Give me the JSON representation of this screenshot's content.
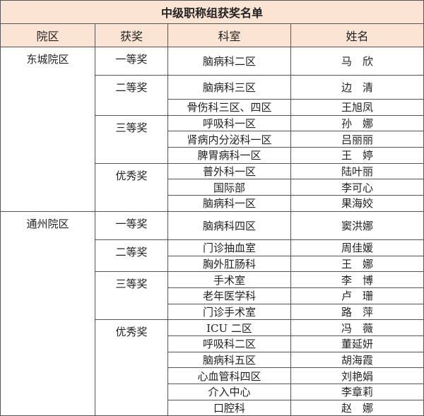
{
  "title": "中级职称组获奖名单",
  "headers": {
    "campus": "院区",
    "award": "获奖",
    "dept": "科室",
    "name": "姓名"
  },
  "header_bg": "#fce4d4",
  "rows": [
    {
      "campus": "东城院区",
      "campus_span": 9,
      "award": "一等奖",
      "award_span": 1,
      "dept": "脑病科二区",
      "name": "马　欣",
      "tall": true
    },
    {
      "award": "二等奖",
      "award_span": 2,
      "dept": "脑病科三区",
      "name": "边　清",
      "tall": true
    },
    {
      "dept": "骨伤科三区、四区",
      "name": "王旭凤"
    },
    {
      "award": "三等奖",
      "award_span": 3,
      "dept": "呼吸科一区",
      "name": "孙　娜"
    },
    {
      "dept": "肾病内分泌科一区",
      "name": "吕丽丽"
    },
    {
      "dept": "脾胃病科一区",
      "name": "王　婷"
    },
    {
      "award": "优秀奖",
      "award_span": 3,
      "dept": "普外科一区",
      "name": "陆叶丽"
    },
    {
      "dept": "国际部",
      "name": "李可心"
    },
    {
      "dept": "脑病科一区",
      "name": "果海姣"
    },
    {
      "campus": "通州院区",
      "campus_span": 12,
      "award": "一等奖",
      "award_span": 1,
      "dept": "脑病科四区",
      "name": "窦洪娜",
      "tall": true
    },
    {
      "award": "二等奖",
      "award_span": 2,
      "dept": "门诊抽血室",
      "name": "周佳媛"
    },
    {
      "dept": "胸外肛肠科",
      "name": "王　娜"
    },
    {
      "award": "三等奖",
      "award_span": 3,
      "dept": "手术室",
      "name": "李　博"
    },
    {
      "dept": "老年医学科",
      "name": "卢　珊"
    },
    {
      "dept": "门诊手术室",
      "name": "路　萍"
    },
    {
      "award": "优秀奖",
      "award_span": 6,
      "dept": "ICU 二区",
      "name": "冯　薇"
    },
    {
      "dept": "呼吸科二区",
      "name": "董延妍"
    },
    {
      "dept": "脑病科五区",
      "name": "胡海霞"
    },
    {
      "dept": "心血管科四区",
      "name": "刘艳娟"
    },
    {
      "dept": "介入中心",
      "name": "李章莉"
    },
    {
      "dept": "口腔科",
      "name": "赵　娜"
    }
  ]
}
